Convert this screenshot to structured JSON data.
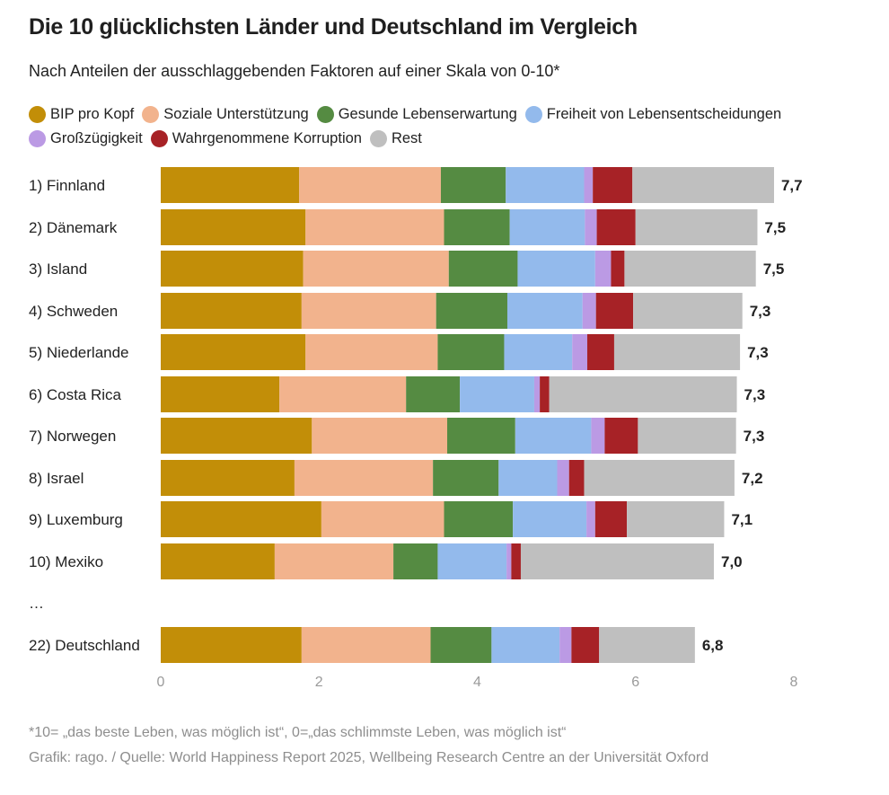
{
  "header": {
    "title": "Die 10 glücklichsten Länder und Deutschland im Vergleich",
    "subtitle": "Nach Anteilen der ausschlaggebenden Faktoren auf einer Skala von 0-10*"
  },
  "footer": {
    "footnote": "*10= „das beste Leben, was möglich ist“, 0=„das schlimmste Leben, was möglich ist“",
    "source": "Grafik: rago. / Quelle: World Happiness Report 2025, Wellbeing Research Centre an der Universität Oxford"
  },
  "chart_data": {
    "type": "bar",
    "orientation": "horizontal",
    "stacked": true,
    "title": "Die 10 glücklichsten Länder und Deutschland im Vergleich",
    "subtitle": "Nach Anteilen der ausschlaggebenden Faktoren auf einer Skala von 0-10*",
    "xlabel": "",
    "ylabel": "",
    "xlim": [
      0,
      8
    ],
    "xticks": [
      0,
      2,
      4,
      6,
      8
    ],
    "grid": false,
    "legend_position": "top",
    "ellipsis_label": "…",
    "categories": [
      "1) Finnland",
      "2) Dänemark",
      "3) Island",
      "4) Schweden",
      "5) Niederlande",
      "6) Costa Rica",
      "7) Norwegen",
      "8) Israel",
      "9) Luxemburg",
      "10) Mexiko",
      "22) Deutschland"
    ],
    "gap_before_index": 10,
    "totals_labels": [
      "7,7",
      "7,5",
      "7,5",
      "7,3",
      "7,3",
      "7,3",
      "7,3",
      "7,2",
      "7,1",
      "7,0",
      "6,8"
    ],
    "series": [
      {
        "name": "BIP pro Kopf",
        "color": "#c28e08",
        "values": [
          1.75,
          1.83,
          1.8,
          1.78,
          1.83,
          1.5,
          1.91,
          1.69,
          2.03,
          1.44,
          1.78
        ]
      },
      {
        "name": "Soziale Unterstützung",
        "color": "#f2b38d",
        "values": [
          1.79,
          1.75,
          1.84,
          1.7,
          1.67,
          1.6,
          1.71,
          1.75,
          1.55,
          1.5,
          1.63
        ]
      },
      {
        "name": "Gesunde Lebenserwartung",
        "color": "#558b42",
        "values": [
          0.82,
          0.83,
          0.87,
          0.9,
          0.84,
          0.68,
          0.86,
          0.83,
          0.87,
          0.56,
          0.77
        ]
      },
      {
        "name": "Freiheit von Lebensentscheidungen",
        "color": "#93baec",
        "values": [
          0.99,
          0.95,
          0.98,
          0.95,
          0.86,
          0.94,
          0.96,
          0.74,
          0.93,
          0.87,
          0.86
        ]
      },
      {
        "name": "Großzügigkeit",
        "color": "#bb9ae4",
        "values": [
          0.11,
          0.15,
          0.2,
          0.17,
          0.19,
          0.07,
          0.17,
          0.15,
          0.11,
          0.06,
          0.15
        ]
      },
      {
        "name": "Wahrgenommene Korruption",
        "color": "#a72226",
        "values": [
          0.5,
          0.49,
          0.17,
          0.47,
          0.34,
          0.12,
          0.42,
          0.19,
          0.4,
          0.12,
          0.35
        ]
      },
      {
        "name": "Rest",
        "color": "#bfbfbf",
        "values": [
          1.79,
          1.54,
          1.66,
          1.38,
          1.59,
          2.37,
          1.24,
          1.9,
          1.23,
          2.44,
          1.21
        ]
      }
    ]
  }
}
